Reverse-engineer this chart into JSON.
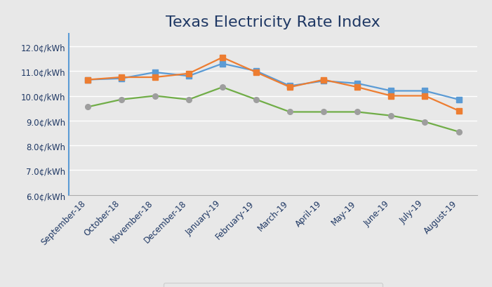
{
  "title": "Texas Electricity Rate Index",
  "categories": [
    "September-18",
    "October-18",
    "November-18",
    "December-18",
    "January-19",
    "February-19",
    "March-19",
    "April-19",
    "May-19",
    "June-19",
    "July-19",
    "August-19"
  ],
  "series": {
    "State Average": [
      10.65,
      10.7,
      10.95,
      10.8,
      11.3,
      11.0,
      10.4,
      10.6,
      10.5,
      10.2,
      10.2,
      9.85
    ],
    "Houston": [
      10.65,
      10.75,
      10.75,
      10.9,
      11.55,
      10.95,
      10.35,
      10.65,
      10.35,
      10.0,
      10.0,
      9.4
    ],
    "DFW": [
      9.55,
      9.85,
      10.0,
      9.85,
      10.35,
      9.85,
      9.35,
      9.35,
      9.35,
      9.2,
      8.95,
      8.55
    ]
  },
  "colors": {
    "State Average": "#5B9BD5",
    "Houston": "#ED7D31",
    "DFW": "#70AD47"
  },
  "markers": {
    "State Average": "s",
    "Houston": "s",
    "DFW": "o"
  },
  "marker_colors": {
    "State Average": "#5B9BD5",
    "Houston": "#ED7D31",
    "DFW": "#9E9E9E"
  },
  "ylim": [
    6.0,
    12.5
  ],
  "yticks": [
    6.0,
    7.0,
    8.0,
    9.0,
    10.0,
    11.0,
    12.0
  ],
  "background_color": "#E8E8E8",
  "plot_background_color": "#E8E8E8",
  "title_color": "#1F3864",
  "tick_label_color": "#1F3864",
  "grid_color": "#FFFFFF",
  "title_fontsize": 16,
  "tick_fontsize": 8.5,
  "legend_fontsize": 9
}
